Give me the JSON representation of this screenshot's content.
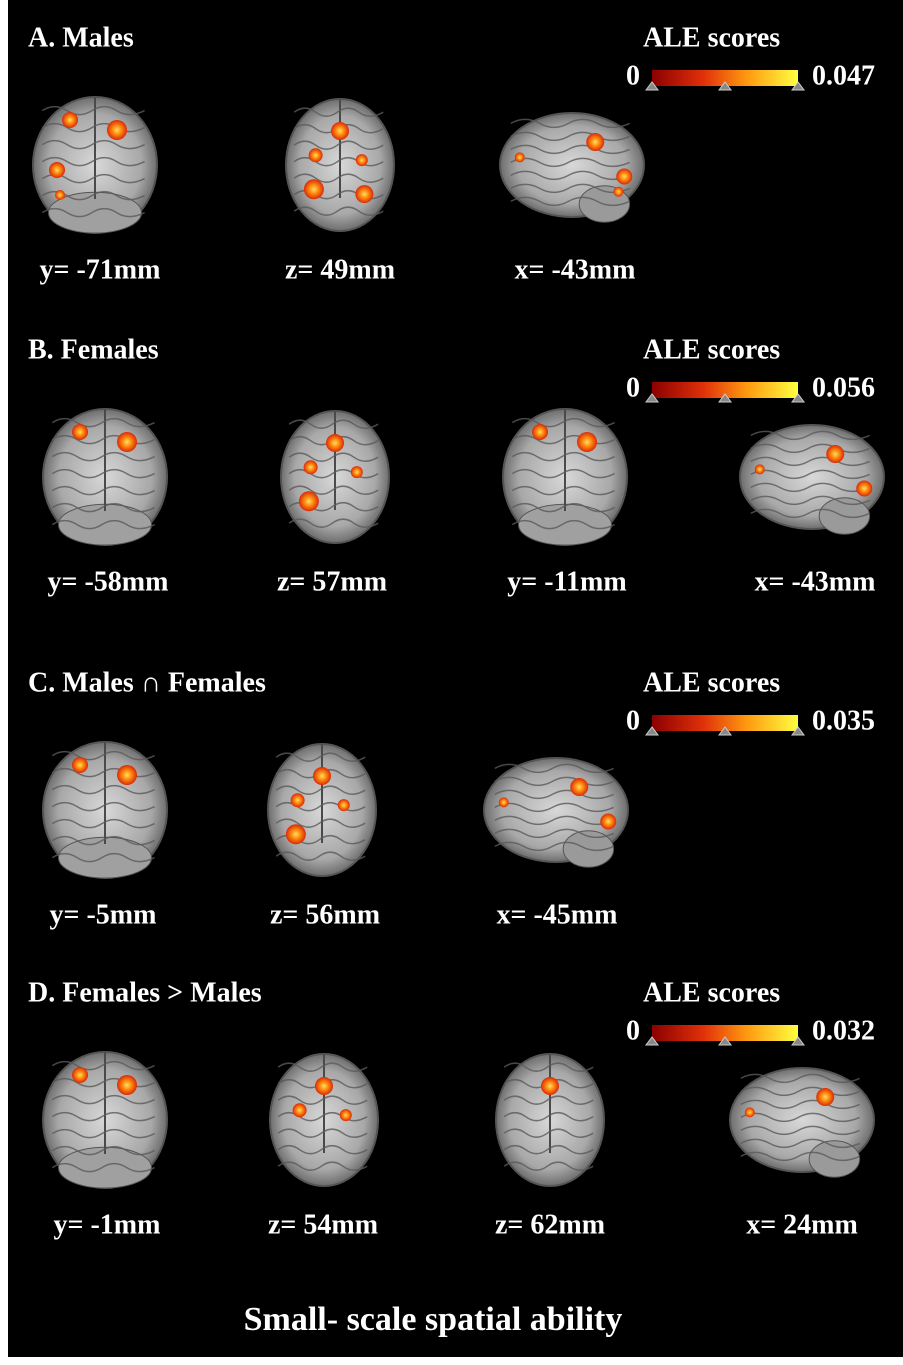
{
  "panels": [
    {
      "title": "A. Males",
      "colorbar": {
        "label": "ALE scores",
        "min": "0",
        "max": "0.047"
      },
      "slices": [
        "y= -71mm",
        "z= 49mm",
        "x= -43mm"
      ]
    },
    {
      "title": "B. Females",
      "colorbar": {
        "label": "ALE scores",
        "min": "0",
        "max": "0.056"
      },
      "slices": [
        "y= -58mm",
        "z= 57mm",
        "y= -11mm",
        "x= -43mm"
      ]
    },
    {
      "title": "C. Males ∩ Females",
      "colorbar": {
        "label": "ALE scores",
        "min": "0",
        "max": "0.035"
      },
      "slices": [
        "y= -5mm",
        "z= 56mm",
        "x= -45mm"
      ]
    },
    {
      "title": "D.   Females  >  Males",
      "colorbar": {
        "label": "ALE scores",
        "min": "0",
        "max": "0.032"
      },
      "slices": [
        "y= -1mm",
        "z= 54mm",
        "z= 62mm",
        "x= 24mm"
      ]
    }
  ],
  "footer": "Small- scale spatial ability"
}
